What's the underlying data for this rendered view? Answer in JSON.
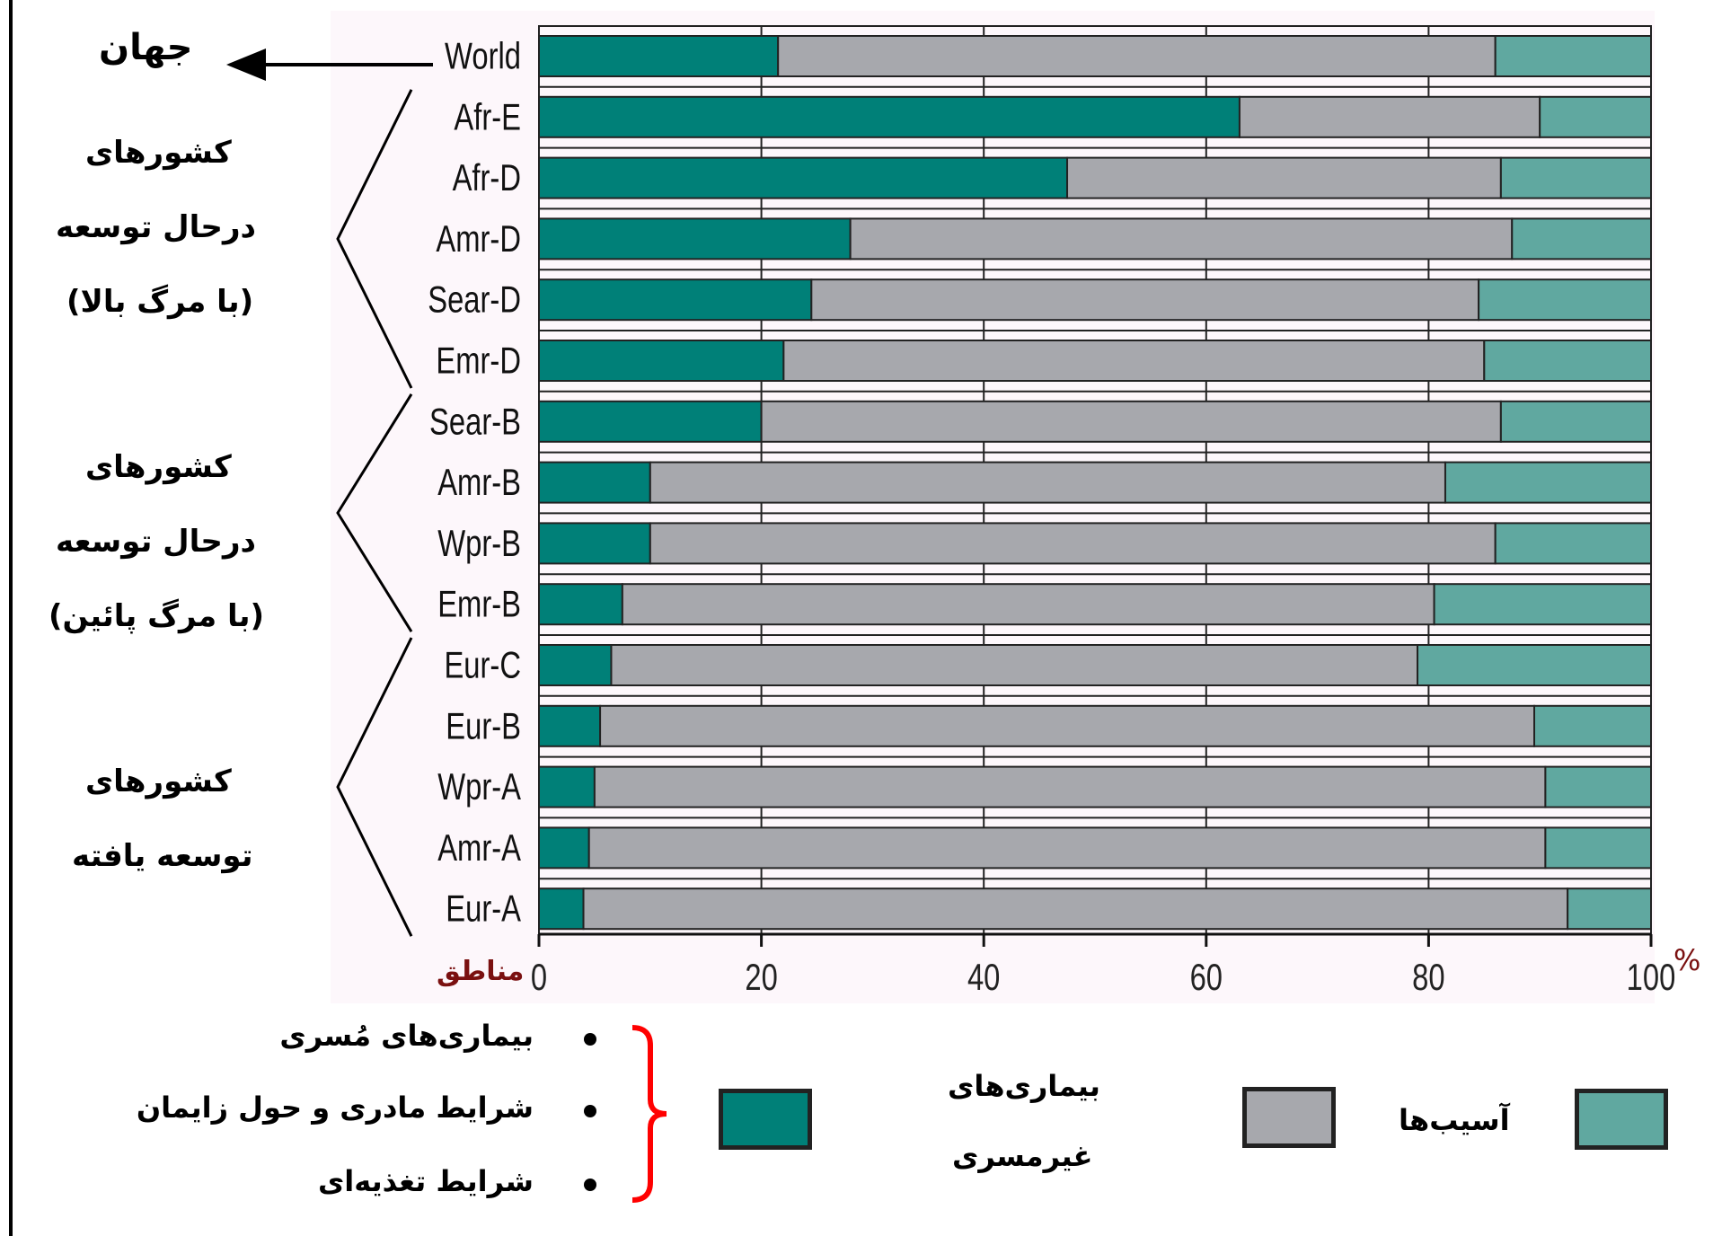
{
  "chart_data": {
    "type": "bar",
    "orientation": "horizontal",
    "stacked": true,
    "categories": [
      "World",
      "Afr-E",
      "Afr-D",
      "Amr-D",
      "Sear-D",
      "Emr-D",
      "Sear-B",
      "Amr-B",
      "Wpr-B",
      "Emr-B",
      "Eur-C",
      "Eur-B",
      "Wpr-A",
      "Amr-A",
      "Eur-A"
    ],
    "series": [
      {
        "name": "بیماری‌های مُسری، شرایط مادری و حول زایمان، شرایط تغذیه‌ای",
        "color": "#008078",
        "values": [
          21.5,
          63,
          47.5,
          28,
          24.5,
          22,
          20,
          10,
          10,
          7.5,
          6.5,
          5.5,
          5,
          4.5,
          4
        ]
      },
      {
        "name": "بیماری‌های غیرمسری",
        "color": "#a7a8ad",
        "values": [
          64.5,
          27,
          39,
          59.5,
          60,
          63,
          66.5,
          71.5,
          76,
          73,
          72.5,
          84,
          85.5,
          86,
          88.5
        ]
      },
      {
        "name": "آسیب‌ها",
        "color": "#60a8a0",
        "values": [
          14,
          10,
          13.5,
          12.5,
          15.5,
          15,
          13.5,
          18.5,
          14,
          19.5,
          21,
          10.5,
          9.5,
          9.5,
          7.5
        ]
      }
    ],
    "xticks": [
      "0",
      "20",
      "40",
      "60",
      "80",
      "100"
    ],
    "xlim": [
      0,
      100
    ],
    "xlabel": "مناطق",
    "x_unit": "%",
    "grid": true
  },
  "world_label": "جهان",
  "groups": [
    {
      "lines": [
        "کشورهای",
        "درحال توسعه",
        "(با مرگ بالا)"
      ]
    },
    {
      "lines": [
        "کشورهای",
        "درحال توسعه",
        "(با مرگ پائین)"
      ]
    },
    {
      "lines": [
        "کشورهای",
        "توسعه یافته"
      ]
    }
  ],
  "legend": {
    "communicable_items": [
      "بیماری‌های مُسری",
      "شرایط مادری و حول زایمان",
      "شرایط تغذیه‌ای"
    ],
    "noncommunicable": [
      "بیماری‌های",
      "غیرمسری"
    ],
    "injuries": "آسیب‌ها"
  },
  "colors": {
    "teal": "#008078",
    "grey": "#a7a8ad",
    "light_teal": "#60a8a0",
    "brace": "#ff0000",
    "xlabel": "#7a1010"
  }
}
